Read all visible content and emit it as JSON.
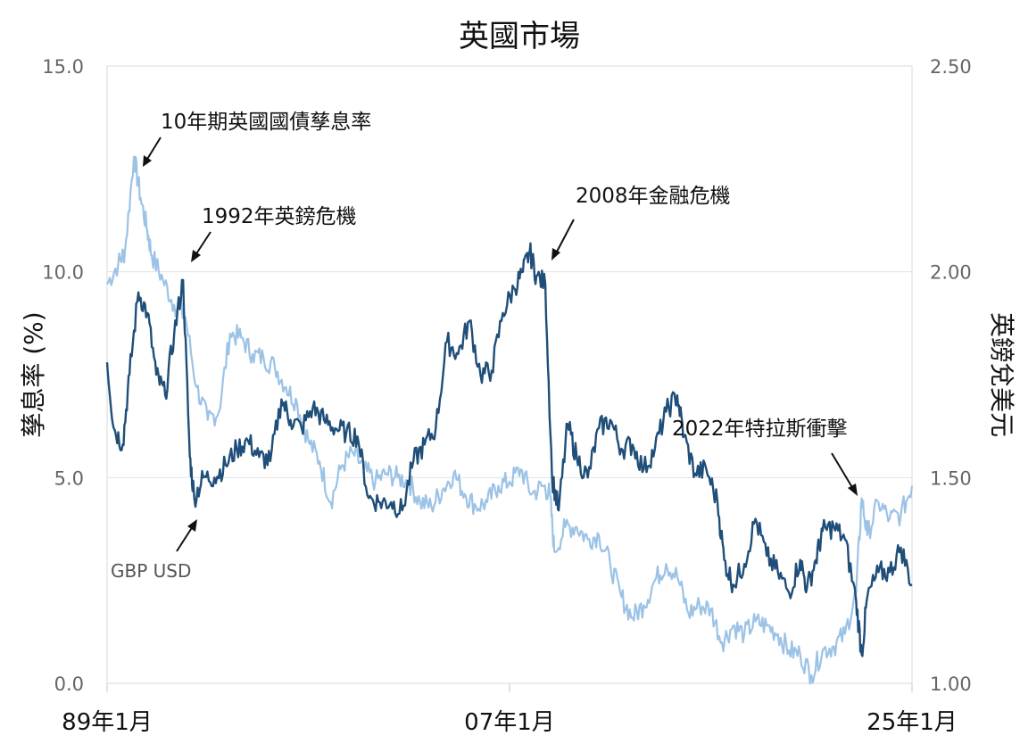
{
  "chart_data": {
    "type": "line",
    "title": "英國市場",
    "ylabel_left": "孳息率 (%)",
    "ylabel_right": "英鎊兌美元",
    "x_ticks": [
      "89年1月",
      "07年1月",
      "25年1月"
    ],
    "x_range": [
      1989.0,
      2025.0
    ],
    "ylim_left": [
      0.0,
      15.0
    ],
    "ylim_right": [
      1.0,
      2.5
    ],
    "y_ticks_left": [
      "0.0",
      "5.0",
      "10.0",
      "15.0"
    ],
    "y_ticks_right": [
      "1.00",
      "1.50",
      "2.00",
      "2.50"
    ],
    "grid": true,
    "colors": {
      "yield": "#9cc3e6",
      "gbpusd": "#1f4e79"
    },
    "annotations": {
      "yield_label": "10年期英國國債孳息率",
      "crisis_1992": "1992年英鎊危機",
      "crisis_2008": "2008年金融危機",
      "crisis_2022": "2022年特拉斯衝擊",
      "gbp_label": "GBP USD"
    },
    "series": [
      {
        "axis": "left",
        "x": [
          1989.0,
          1989.5,
          1989.8,
          1990.2,
          1990.5,
          1990.8,
          1991.0,
          1991.5,
          1992.0,
          1992.5,
          1993.0,
          1993.5,
          1994.0,
          1994.5,
          1995.0,
          1995.5,
          1996.0,
          1996.5,
          1997.0,
          1997.5,
          1998.0,
          1998.5,
          1999.0,
          1999.5,
          2000.0,
          2000.5,
          2001.0,
          2001.5,
          2002.0,
          2002.5,
          2003.0,
          2003.5,
          2004.0,
          2004.5,
          2005.0,
          2005.5,
          2006.0,
          2006.5,
          2007.0,
          2007.5,
          2008.0,
          2008.5,
          2008.8,
          2009.0,
          2009.5,
          2010.0,
          2010.5,
          2011.0,
          2011.5,
          2012.0,
          2012.5,
          2013.0,
          2013.5,
          2014.0,
          2014.5,
          2015.0,
          2015.5,
          2016.0,
          2016.5,
          2017.0,
          2017.5,
          2018.0,
          2018.5,
          2019.0,
          2019.5,
          2020.0,
          2020.5,
          2021.0,
          2021.5,
          2022.0,
          2022.5,
          2022.75,
          2023.0,
          2023.5,
          2024.0,
          2024.5,
          2025.0
        ],
        "values": [
          9.7,
          10.2,
          10.5,
          12.8,
          11.8,
          11.0,
          10.4,
          9.8,
          9.2,
          8.9,
          7.2,
          6.4,
          6.6,
          8.5,
          8.4,
          8.0,
          7.9,
          7.7,
          7.2,
          6.8,
          5.9,
          5.4,
          4.4,
          5.3,
          5.6,
          5.2,
          4.9,
          5.1,
          5.0,
          4.9,
          4.4,
          4.3,
          4.7,
          5.1,
          4.6,
          4.3,
          4.4,
          4.8,
          4.9,
          5.2,
          4.6,
          4.8,
          4.6,
          3.2,
          3.8,
          3.8,
          3.5,
          3.6,
          2.9,
          2.1,
          1.6,
          1.9,
          2.5,
          2.9,
          2.6,
          1.7,
          1.9,
          1.8,
          1.0,
          1.4,
          1.2,
          1.5,
          1.4,
          1.2,
          0.8,
          0.7,
          0.2,
          0.8,
          0.9,
          1.2,
          2.2,
          4.5,
          3.6,
          4.4,
          4.0,
          4.1,
          4.8
        ]
      },
      {
        "axis": "right",
        "x": [
          1989.0,
          1989.3,
          1989.7,
          1990.0,
          1990.4,
          1990.8,
          1991.2,
          1991.6,
          1992.0,
          1992.4,
          1992.7,
          1992.9,
          1993.3,
          1993.8,
          1994.3,
          1994.8,
          1995.3,
          1995.8,
          1996.3,
          1996.8,
          1997.2,
          1997.7,
          1998.2,
          1998.7,
          1999.2,
          1999.7,
          2000.2,
          2000.7,
          2001.2,
          2001.7,
          2002.2,
          2002.7,
          2003.2,
          2003.7,
          2004.2,
          2004.7,
          2005.2,
          2005.7,
          2006.2,
          2006.7,
          2007.2,
          2007.6,
          2007.9,
          2008.2,
          2008.6,
          2008.9,
          2009.2,
          2009.6,
          2010.0,
          2010.5,
          2011.0,
          2011.5,
          2012.0,
          2012.5,
          2013.0,
          2013.5,
          2014.0,
          2014.5,
          2014.8,
          2015.3,
          2015.8,
          2016.3,
          2016.6,
          2017.0,
          2017.5,
          2018.0,
          2018.5,
          2019.0,
          2019.5,
          2020.0,
          2020.3,
          2020.7,
          2021.0,
          2021.5,
          2022.0,
          2022.5,
          2022.75,
          2023.0,
          2023.5,
          2024.0,
          2024.5,
          2025.0
        ],
        "values": [
          1.78,
          1.62,
          1.58,
          1.75,
          1.95,
          1.9,
          1.75,
          1.7,
          1.85,
          1.98,
          1.55,
          1.45,
          1.5,
          1.5,
          1.53,
          1.57,
          1.59,
          1.55,
          1.54,
          1.69,
          1.64,
          1.62,
          1.67,
          1.64,
          1.62,
          1.61,
          1.6,
          1.45,
          1.44,
          1.44,
          1.42,
          1.54,
          1.58,
          1.62,
          1.83,
          1.8,
          1.88,
          1.75,
          1.76,
          1.9,
          1.96,
          2.0,
          2.05,
          1.99,
          1.97,
          1.5,
          1.42,
          1.63,
          1.55,
          1.5,
          1.62,
          1.64,
          1.57,
          1.58,
          1.52,
          1.57,
          1.66,
          1.7,
          1.6,
          1.51,
          1.52,
          1.44,
          1.3,
          1.24,
          1.29,
          1.4,
          1.31,
          1.27,
          1.22,
          1.3,
          1.23,
          1.3,
          1.37,
          1.38,
          1.35,
          1.2,
          1.07,
          1.21,
          1.27,
          1.27,
          1.33,
          1.24
        ]
      }
    ]
  }
}
